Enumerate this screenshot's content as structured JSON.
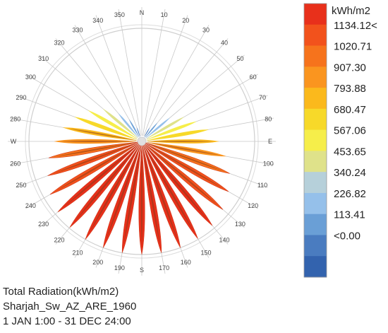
{
  "chart_data": {
    "type": "radiation-rose",
    "title": "Total Radiation(kWh/m2)",
    "location": "Sharjah_Sw_AZ_ARE_1960",
    "period": "1 JAN 1:00 - 31 DEC 24:00",
    "direction_labels": [
      {
        "az": 0,
        "label": "N"
      },
      {
        "az": 10,
        "label": "10"
      },
      {
        "az": 20,
        "label": "20"
      },
      {
        "az": 30,
        "label": "30"
      },
      {
        "az": 40,
        "label": "40"
      },
      {
        "az": 50,
        "label": "50"
      },
      {
        "az": 60,
        "label": "60"
      },
      {
        "az": 70,
        "label": "70"
      },
      {
        "az": 80,
        "label": "80"
      },
      {
        "az": 90,
        "label": "E"
      },
      {
        "az": 100,
        "label": "100"
      },
      {
        "az": 110,
        "label": "110"
      },
      {
        "az": 120,
        "label": "120"
      },
      {
        "az": 130,
        "label": "130"
      },
      {
        "az": 140,
        "label": "140"
      },
      {
        "az": 150,
        "label": "150"
      },
      {
        "az": 160,
        "label": "160"
      },
      {
        "az": 170,
        "label": "170"
      },
      {
        "az": 180,
        "label": "S"
      },
      {
        "az": 190,
        "label": "190"
      },
      {
        "az": 200,
        "label": "200"
      },
      {
        "az": 210,
        "label": "210"
      },
      {
        "az": 220,
        "label": "220"
      },
      {
        "az": 230,
        "label": "230"
      },
      {
        "az": 240,
        "label": "240"
      },
      {
        "az": 250,
        "label": "250"
      },
      {
        "az": 260,
        "label": "260"
      },
      {
        "az": 270,
        "label": "W"
      },
      {
        "az": 280,
        "label": "280"
      },
      {
        "az": 290,
        "label": "290"
      },
      {
        "az": 300,
        "label": "300"
      },
      {
        "az": 310,
        "label": "310"
      },
      {
        "az": 320,
        "label": "320"
      },
      {
        "az": 330,
        "label": "330"
      },
      {
        "az": 340,
        "label": "340"
      },
      {
        "az": 350,
        "label": "350"
      }
    ],
    "petals": [
      {
        "az": 0,
        "value": 0
      },
      {
        "az": 10,
        "value": 0
      },
      {
        "az": 20,
        "value": 0
      },
      {
        "az": 30,
        "value": 110
      },
      {
        "az": 40,
        "value": 200
      },
      {
        "az": 50,
        "value": 330
      },
      {
        "az": 60,
        "value": 460
      },
      {
        "az": 70,
        "value": 560
      },
      {
        "az": 80,
        "value": 660
      },
      {
        "az": 90,
        "value": 760
      },
      {
        "az": 100,
        "value": 850
      },
      {
        "az": 110,
        "value": 930
      },
      {
        "az": 120,
        "value": 1000
      },
      {
        "az": 130,
        "value": 1060
      },
      {
        "az": 140,
        "value": 1100
      },
      {
        "az": 150,
        "value": 1125
      },
      {
        "az": 160,
        "value": 1134
      },
      {
        "az": 170,
        "value": 1134
      },
      {
        "az": 180,
        "value": 1134
      },
      {
        "az": 190,
        "value": 1134
      },
      {
        "az": 200,
        "value": 1134
      },
      {
        "az": 210,
        "value": 1134
      },
      {
        "az": 220,
        "value": 1125
      },
      {
        "az": 230,
        "value": 1100
      },
      {
        "az": 240,
        "value": 1060
      },
      {
        "az": 250,
        "value": 1000
      },
      {
        "az": 260,
        "value": 940
      },
      {
        "az": 270,
        "value": 870
      },
      {
        "az": 280,
        "value": 790
      },
      {
        "az": 290,
        "value": 700
      },
      {
        "az": 300,
        "value": 600
      },
      {
        "az": 310,
        "value": 480
      },
      {
        "az": 320,
        "value": 330
      },
      {
        "az": 330,
        "value": 210
      },
      {
        "az": 340,
        "value": 100
      },
      {
        "az": 350,
        "value": 0
      }
    ],
    "legend": {
      "unit": "kWh/m2",
      "labels": [
        "1134.12<",
        "1020.71",
        "907.30",
        "793.88",
        "680.47",
        "567.06",
        "453.65",
        "340.24",
        "226.82",
        "113.41",
        "<0.00"
      ],
      "colors": [
        "#e8301b",
        "#f2521c",
        "#f6731c",
        "#fa951f",
        "#fbb91c",
        "#f7d929",
        "#f6ee4a",
        "#dfe28a",
        "#b6d0da",
        "#95c0ea",
        "#6a9fd6",
        "#4a7cc0",
        "#3363ae"
      ],
      "max": 1134.12
    }
  }
}
